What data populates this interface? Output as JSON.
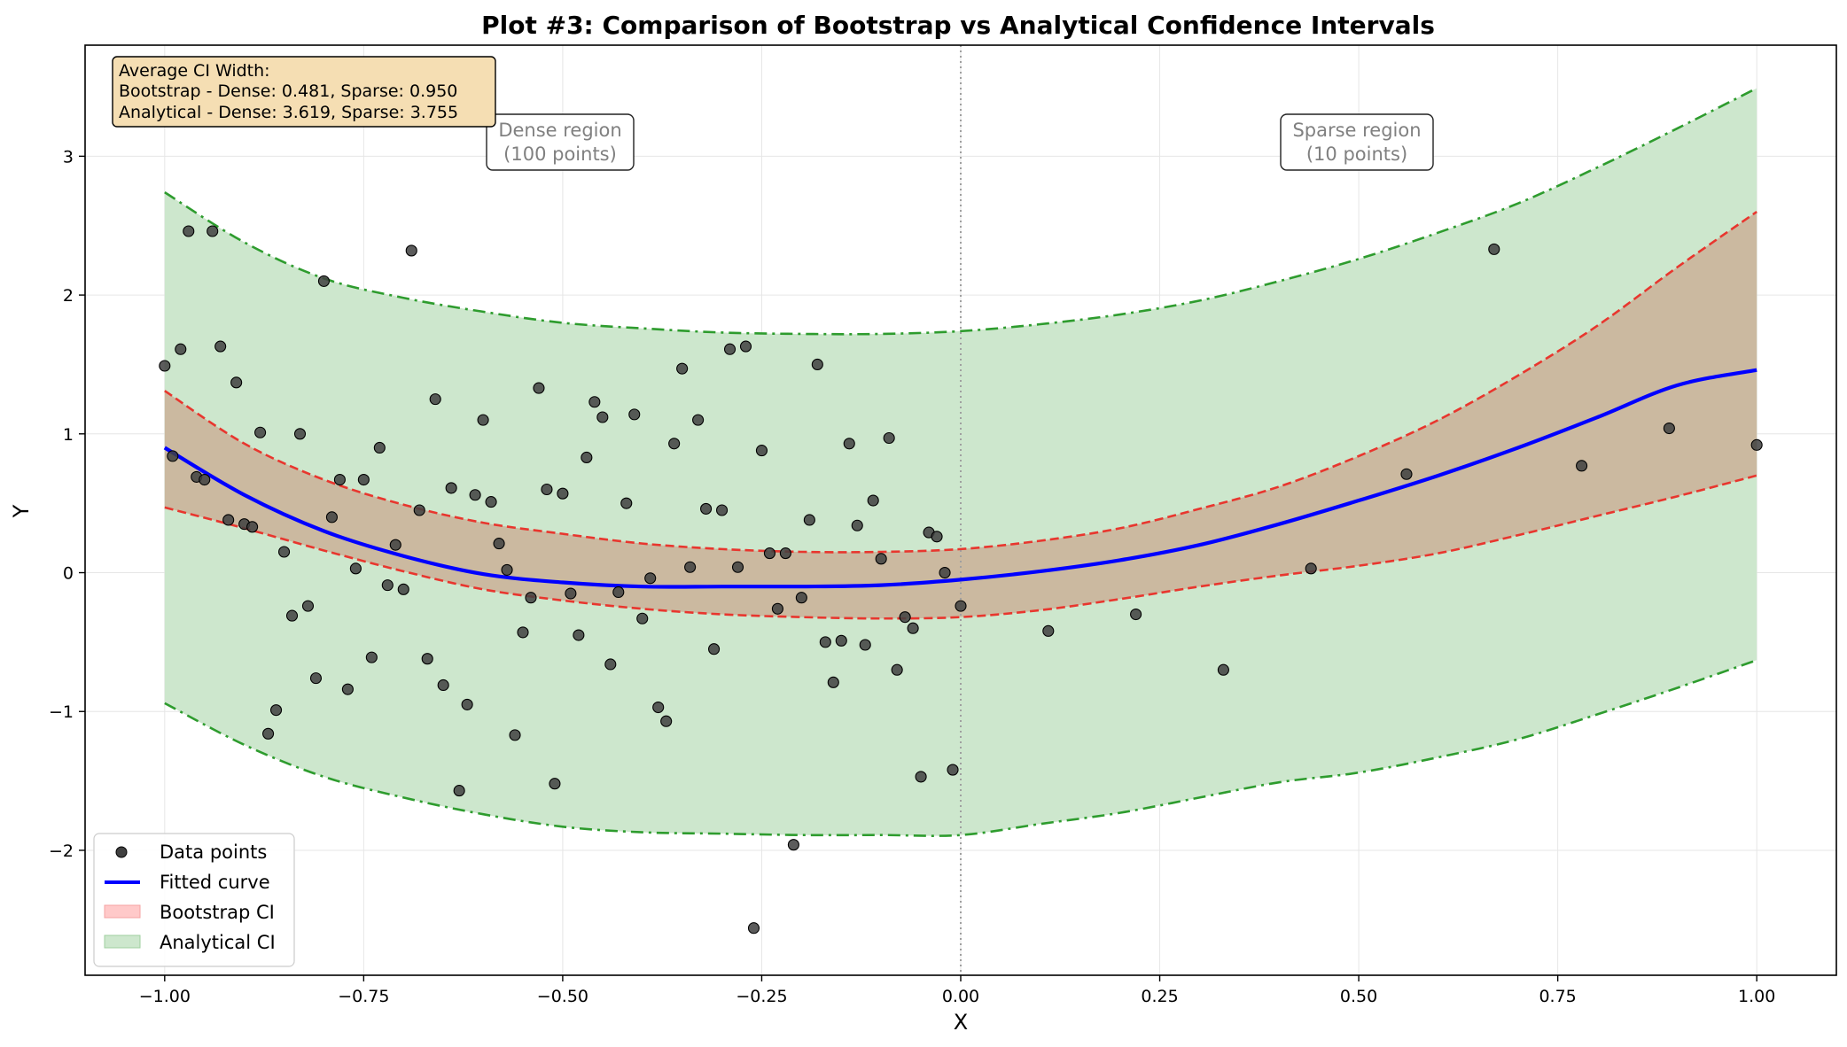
{
  "chart_data": {
    "type": "scatter",
    "title": "Plot #3: Comparison of Bootstrap vs Analytical Confidence Intervals",
    "xlabel": "X",
    "ylabel": "Y",
    "xlim": [
      -1.1,
      1.1
    ],
    "ylim": [
      -2.9,
      3.8
    ],
    "xticks": [
      -1.0,
      -0.75,
      -0.5,
      -0.25,
      0.0,
      0.25,
      0.5,
      0.75,
      1.0
    ],
    "xtick_labels": [
      "−1.00",
      "−0.75",
      "−0.50",
      "−0.25",
      "0.00",
      "0.25",
      "0.50",
      "0.75",
      "1.00"
    ],
    "yticks": [
      -2,
      -1,
      0,
      1,
      2,
      3
    ],
    "ytick_labels": [
      "−2",
      "−1",
      "0",
      "1",
      "2",
      "3"
    ],
    "grid": true,
    "legend_position": "lower-left",
    "vline_x": 0.0,
    "colors": {
      "points": "#404040",
      "fit": "#0000ff",
      "bootstrap_line": "#e8362e",
      "bootstrap_fill": "#ffb3b3",
      "analytical_line": "#2e9c2e",
      "analytical_fill": "#cde7cd",
      "overlap_fill": "#cbb9a0",
      "info_box": "#f5deb3"
    },
    "x": [
      -1.0,
      -0.9,
      -0.8,
      -0.7,
      -0.6,
      -0.5,
      -0.4,
      -0.3,
      -0.2,
      -0.1,
      0.0,
      0.1,
      0.2,
      0.3,
      0.4,
      0.5,
      0.6,
      0.7,
      0.8,
      0.9,
      1.0
    ],
    "series": [
      {
        "name": "Fitted curve",
        "values": [
          0.9,
          0.56,
          0.3,
          0.12,
          -0.01,
          -0.07,
          -0.1,
          -0.1,
          -0.1,
          -0.09,
          -0.05,
          0.01,
          0.09,
          0.2,
          0.35,
          0.52,
          0.7,
          0.9,
          1.12,
          1.35,
          1.46
        ]
      },
      {
        "name": "Bootstrap CI upper",
        "values": [
          1.31,
          0.93,
          0.67,
          0.49,
          0.36,
          0.28,
          0.21,
          0.17,
          0.15,
          0.15,
          0.17,
          0.23,
          0.32,
          0.46,
          0.62,
          0.84,
          1.1,
          1.42,
          1.78,
          2.2,
          2.6
        ]
      },
      {
        "name": "Bootstrap CI lower",
        "values": [
          0.47,
          0.32,
          0.16,
          0.01,
          -0.12,
          -0.2,
          -0.26,
          -0.3,
          -0.32,
          -0.33,
          -0.32,
          -0.27,
          -0.19,
          -0.1,
          -0.02,
          0.05,
          0.14,
          0.27,
          0.41,
          0.55,
          0.7
        ]
      },
      {
        "name": "Analytical CI upper",
        "values": [
          2.74,
          2.38,
          2.12,
          1.98,
          1.88,
          1.8,
          1.76,
          1.73,
          1.72,
          1.72,
          1.74,
          1.79,
          1.86,
          1.96,
          2.1,
          2.26,
          2.45,
          2.66,
          2.92,
          3.2,
          3.49
        ]
      },
      {
        "name": "Analytical CI lower",
        "values": [
          -0.94,
          -1.24,
          -1.47,
          -1.62,
          -1.74,
          -1.83,
          -1.87,
          -1.88,
          -1.89,
          -1.89,
          -1.89,
          -1.81,
          -1.73,
          -1.62,
          -1.51,
          -1.44,
          -1.33,
          -1.2,
          -1.02,
          -0.83,
          -0.63
        ]
      }
    ],
    "points": [
      [
        -1.0,
        1.49
      ],
      [
        -0.99,
        0.84
      ],
      [
        -0.98,
        1.61
      ],
      [
        -0.97,
        2.46
      ],
      [
        -0.96,
        0.69
      ],
      [
        -0.95,
        0.67
      ],
      [
        -0.94,
        2.46
      ],
      [
        -0.93,
        1.63
      ],
      [
        -0.92,
        0.38
      ],
      [
        -0.91,
        1.37
      ],
      [
        -0.9,
        0.35
      ],
      [
        -0.89,
        0.33
      ],
      [
        -0.88,
        1.01
      ],
      [
        -0.87,
        -1.16
      ],
      [
        -0.86,
        -0.99
      ],
      [
        -0.85,
        0.15
      ],
      [
        -0.84,
        -0.31
      ],
      [
        -0.83,
        1.0
      ],
      [
        -0.82,
        -0.24
      ],
      [
        -0.81,
        -0.76
      ],
      [
        -0.8,
        2.1
      ],
      [
        -0.79,
        0.4
      ],
      [
        -0.78,
        0.67
      ],
      [
        -0.77,
        -0.84
      ],
      [
        -0.76,
        0.03
      ],
      [
        -0.75,
        0.67
      ],
      [
        -0.74,
        -0.61
      ],
      [
        -0.73,
        0.9
      ],
      [
        -0.72,
        -0.09
      ],
      [
        -0.71,
        0.2
      ],
      [
        -0.7,
        -0.12
      ],
      [
        -0.69,
        2.32
      ],
      [
        -0.68,
        0.45
      ],
      [
        -0.67,
        -0.62
      ],
      [
        -0.66,
        1.25
      ],
      [
        -0.65,
        -0.81
      ],
      [
        -0.64,
        0.61
      ],
      [
        -0.63,
        -1.57
      ],
      [
        -0.62,
        -0.95
      ],
      [
        -0.61,
        0.56
      ],
      [
        -0.6,
        1.1
      ],
      [
        -0.59,
        0.51
      ],
      [
        -0.58,
        0.21
      ],
      [
        -0.57,
        0.02
      ],
      [
        -0.56,
        -1.17
      ],
      [
        -0.55,
        -0.43
      ],
      [
        -0.54,
        -0.18
      ],
      [
        -0.53,
        1.33
      ],
      [
        -0.52,
        0.6
      ],
      [
        -0.51,
        -1.52
      ],
      [
        -0.5,
        0.57
      ],
      [
        -0.49,
        -0.15
      ],
      [
        -0.48,
        -0.45
      ],
      [
        -0.47,
        0.83
      ],
      [
        -0.46,
        1.23
      ],
      [
        -0.45,
        1.12
      ],
      [
        -0.44,
        -0.66
      ],
      [
        -0.43,
        -0.14
      ],
      [
        -0.42,
        0.5
      ],
      [
        -0.41,
        1.14
      ],
      [
        -0.4,
        -0.33
      ],
      [
        -0.39,
        -0.04
      ],
      [
        -0.38,
        -0.97
      ],
      [
        -0.37,
        -1.07
      ],
      [
        -0.36,
        0.93
      ],
      [
        -0.35,
        1.47
      ],
      [
        -0.34,
        0.04
      ],
      [
        -0.33,
        1.1
      ],
      [
        -0.32,
        0.46
      ],
      [
        -0.31,
        -0.55
      ],
      [
        -0.3,
        0.45
      ],
      [
        -0.29,
        1.61
      ],
      [
        -0.28,
        0.04
      ],
      [
        -0.27,
        1.63
      ],
      [
        -0.26,
        -2.56
      ],
      [
        -0.25,
        0.88
      ],
      [
        -0.24,
        0.14
      ],
      [
        -0.23,
        -0.26
      ],
      [
        -0.22,
        0.14
      ],
      [
        -0.21,
        -1.96
      ],
      [
        -0.2,
        -0.18
      ],
      [
        -0.19,
        0.38
      ],
      [
        -0.18,
        1.5
      ],
      [
        -0.17,
        -0.5
      ],
      [
        -0.16,
        -0.79
      ],
      [
        -0.15,
        -0.49
      ],
      [
        -0.14,
        0.93
      ],
      [
        -0.13,
        0.34
      ],
      [
        -0.12,
        -0.52
      ],
      [
        -0.11,
        0.52
      ],
      [
        -0.1,
        0.1
      ],
      [
        -0.09,
        0.97
      ],
      [
        -0.08,
        -0.7
      ],
      [
        -0.07,
        -0.32
      ],
      [
        -0.06,
        -0.4
      ],
      [
        -0.05,
        -1.47
      ],
      [
        -0.04,
        0.29
      ],
      [
        -0.03,
        0.26
      ],
      [
        -0.02,
        0.0
      ],
      [
        -0.01,
        -1.42
      ],
      [
        0.0,
        -0.24
      ],
      [
        0.11,
        -0.42
      ],
      [
        0.22,
        -0.3
      ],
      [
        0.33,
        -0.7
      ],
      [
        0.44,
        0.03
      ],
      [
        0.56,
        0.71
      ],
      [
        0.67,
        2.33
      ],
      [
        0.78,
        0.77
      ],
      [
        0.89,
        1.04
      ],
      [
        1.0,
        0.92
      ]
    ],
    "legend": {
      "points": "Data points",
      "fit": "Fitted curve",
      "bootstrap": "Bootstrap CI",
      "analytical": "Analytical CI"
    },
    "annotations": {
      "dense_line1": "Dense region",
      "dense_line2": "(100 points)",
      "sparse_line1": "Sparse region",
      "sparse_line2": "(10 points)"
    },
    "info_box": {
      "line1": "Average CI Width:",
      "line2": "Bootstrap - Dense: 0.481, Sparse: 0.950",
      "line3": "Analytical - Dense: 3.619, Sparse: 3.755"
    }
  }
}
